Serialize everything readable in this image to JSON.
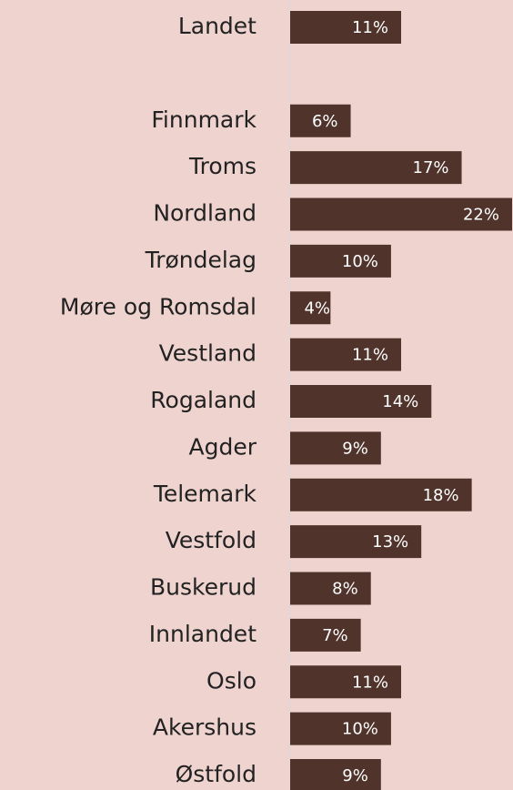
{
  "chart_data": {
    "type": "bar",
    "orientation": "horizontal",
    "categories": [
      "Landet",
      null,
      "Finnmark",
      "Troms",
      "Nordland",
      "Trøndelag",
      "Møre og Romsdal",
      "Vestland",
      "Rogaland",
      "Agder",
      "Telemark",
      "Vestfold",
      "Buskerud",
      "Innlandet",
      "Oslo",
      "Akershus",
      "Østfold"
    ],
    "values": [
      11,
      null,
      6,
      17,
      22,
      10,
      4,
      11,
      14,
      9,
      18,
      13,
      8,
      7,
      11,
      10,
      9
    ],
    "value_labels": [
      "11%",
      null,
      "6%",
      "17%",
      "22%",
      "10%",
      "4%",
      "11%",
      "14%",
      "9%",
      "18%",
      "13%",
      "8%",
      "7%",
      "11%",
      "10%",
      "9%"
    ],
    "color": "#50342c",
    "xlim": [
      0,
      22
    ]
  }
}
